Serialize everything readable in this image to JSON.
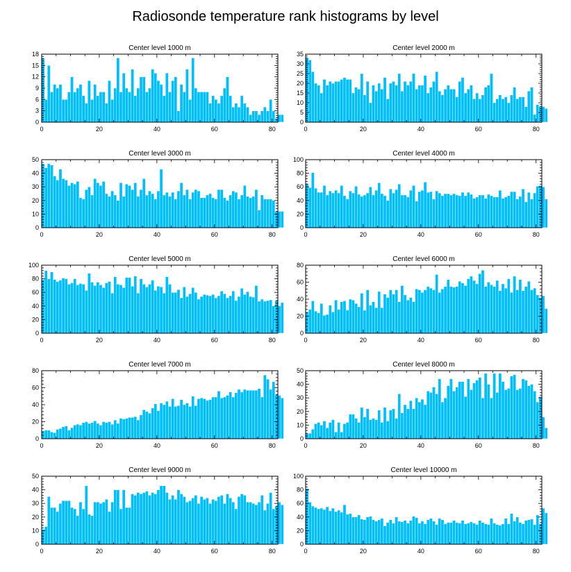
{
  "figure": {
    "title": "Radiosonde temperature rank histograms by level",
    "bar_color": "#00bfff"
  },
  "chart_data": [
    {
      "type": "bar",
      "title": "Center level 1000 m",
      "xlim": [
        0,
        82
      ],
      "ylim": [
        0,
        18
      ],
      "x_ticks": [
        0,
        20,
        40,
        60,
        80
      ],
      "y_ticks": [
        0,
        3,
        6,
        9,
        12,
        15,
        18
      ],
      "y_axis_side": "left",
      "values": [
        17,
        6,
        15,
        8,
        10,
        9,
        10,
        6,
        6,
        8,
        12,
        8,
        9,
        10,
        7,
        5,
        11,
        6,
        10,
        7,
        8,
        8,
        5,
        11,
        6,
        9,
        17,
        8,
        13,
        9,
        8,
        14,
        7,
        9,
        12,
        12,
        8,
        9,
        14,
        13,
        11,
        10,
        7,
        13,
        8,
        11,
        12,
        3,
        10,
        8,
        14,
        6,
        17,
        9,
        8,
        8,
        8,
        8,
        5,
        7,
        6,
        5,
        7,
        9,
        12,
        7,
        4,
        5,
        4,
        7,
        5,
        4,
        2,
        3,
        3,
        2,
        3,
        4,
        3,
        6,
        3,
        1,
        2,
        2
      ]
    },
    {
      "type": "bar",
      "title": "Center level 2000 m",
      "xlim": [
        0,
        82
      ],
      "ylim": [
        0,
        35
      ],
      "x_ticks": [
        0,
        20,
        40,
        60,
        80
      ],
      "y_ticks": [
        0,
        5,
        10,
        15,
        20,
        25,
        30,
        35
      ],
      "y_axis_side": "right",
      "values": [
        33,
        32,
        26,
        20,
        19,
        15,
        22,
        19,
        21,
        20,
        21,
        21,
        22,
        23,
        22,
        22,
        15,
        18,
        17,
        25,
        14,
        21,
        10,
        19,
        16,
        20,
        17,
        23,
        12,
        20,
        21,
        19,
        25,
        16,
        21,
        19,
        21,
        25,
        17,
        19,
        19,
        24,
        15,
        18,
        21,
        26,
        16,
        14,
        17,
        19,
        17,
        17,
        13,
        21,
        23,
        15,
        17,
        19,
        12,
        15,
        12,
        14,
        18,
        19,
        25,
        10,
        12,
        14,
        12,
        13,
        10,
        14,
        18,
        12,
        13,
        13,
        8,
        16,
        18,
        4,
        9,
        8,
        8,
        7
      ]
    },
    {
      "type": "bar",
      "title": "Center level 3000 m",
      "xlim": [
        0,
        82
      ],
      "ylim": [
        0,
        50
      ],
      "x_ticks": [
        0,
        20,
        40,
        60,
        80
      ],
      "y_ticks": [
        0,
        10,
        20,
        30,
        40,
        50
      ],
      "y_axis_side": "left",
      "values": [
        47,
        44,
        47,
        46,
        38,
        35,
        43,
        36,
        35,
        31,
        33,
        32,
        34,
        22,
        21,
        28,
        30,
        24,
        36,
        33,
        31,
        34,
        25,
        23,
        27,
        24,
        20,
        33,
        23,
        32,
        31,
        28,
        33,
        23,
        28,
        36,
        24,
        27,
        25,
        21,
        27,
        43,
        24,
        26,
        23,
        26,
        21,
        27,
        33,
        24,
        28,
        21,
        26,
        28,
        27,
        22,
        22,
        24,
        25,
        22,
        21,
        28,
        28,
        22,
        20,
        24,
        27,
        26,
        21,
        24,
        31,
        23,
        22,
        23,
        28,
        13,
        24,
        21,
        21,
        21,
        20,
        12,
        12,
        12
      ]
    },
    {
      "type": "bar",
      "title": "Center level 4000 m",
      "xlim": [
        0,
        82
      ],
      "ylim": [
        0,
        100
      ],
      "x_ticks": [
        0,
        20,
        40,
        60,
        80
      ],
      "y_ticks": [
        0,
        20,
        40,
        60,
        80,
        100
      ],
      "y_axis_side": "right",
      "values": [
        65,
        59,
        81,
        58,
        52,
        52,
        62,
        48,
        54,
        51,
        55,
        51,
        62,
        47,
        42,
        54,
        51,
        61,
        49,
        46,
        48,
        51,
        60,
        48,
        55,
        66,
        50,
        47,
        40,
        57,
        51,
        56,
        64,
        48,
        48,
        45,
        55,
        62,
        39,
        53,
        55,
        67,
        52,
        53,
        42,
        54,
        51,
        47,
        50,
        50,
        48,
        50,
        48,
        47,
        52,
        47,
        52,
        49,
        43,
        45,
        48,
        48,
        43,
        49,
        47,
        45,
        45,
        55,
        43,
        45,
        47,
        53,
        53,
        42,
        46,
        57,
        38,
        52,
        42,
        51,
        61,
        62,
        60,
        42
      ]
    },
    {
      "type": "bar",
      "title": "Center level 5000 m",
      "xlim": [
        0,
        82
      ],
      "ylim": [
        0,
        100
      ],
      "x_ticks": [
        0,
        20,
        40,
        60,
        80
      ],
      "y_ticks": [
        0,
        20,
        40,
        60,
        80,
        100
      ],
      "y_axis_side": "left",
      "values": [
        79,
        92,
        80,
        90,
        79,
        76,
        78,
        81,
        80,
        72,
        74,
        80,
        71,
        73,
        72,
        63,
        88,
        75,
        70,
        75,
        71,
        67,
        74,
        76,
        59,
        83,
        72,
        71,
        67,
        82,
        82,
        69,
        84,
        59,
        80,
        72,
        68,
        72,
        78,
        63,
        69,
        68,
        59,
        83,
        72,
        60,
        60,
        64,
        52,
        68,
        54,
        58,
        67,
        60,
        50,
        54,
        57,
        56,
        55,
        57,
        52,
        55,
        62,
        58,
        52,
        55,
        62,
        48,
        54,
        66,
        57,
        61,
        54,
        53,
        70,
        47,
        50,
        47,
        48,
        49,
        40,
        48,
        40,
        45
      ]
    },
    {
      "type": "bar",
      "title": "Center level 6000 m",
      "xlim": [
        0,
        82
      ],
      "ylim": [
        0,
        80
      ],
      "x_ticks": [
        0,
        20,
        40,
        60,
        80
      ],
      "y_ticks": [
        0,
        20,
        40,
        60,
        80
      ],
      "y_axis_side": "right",
      "values": [
        25,
        28,
        38,
        26,
        24,
        35,
        21,
        22,
        33,
        25,
        39,
        28,
        37,
        38,
        27,
        40,
        39,
        35,
        31,
        47,
        27,
        51,
        33,
        37,
        30,
        49,
        30,
        46,
        42,
        51,
        46,
        51,
        37,
        56,
        45,
        39,
        42,
        37,
        52,
        51,
        48,
        51,
        55,
        53,
        51,
        69,
        48,
        52,
        55,
        63,
        55,
        54,
        55,
        61,
        59,
        56,
        64,
        67,
        62,
        58,
        70,
        74,
        55,
        60,
        57,
        55,
        62,
        50,
        58,
        53,
        64,
        48,
        67,
        51,
        63,
        50,
        55,
        61,
        51,
        53,
        45,
        42,
        44,
        29
      ]
    },
    {
      "type": "bar",
      "title": "Center level 7000 m",
      "xlim": [
        0,
        82
      ],
      "ylim": [
        0,
        80
      ],
      "x_ticks": [
        0,
        20,
        40,
        60,
        80
      ],
      "y_ticks": [
        0,
        20,
        40,
        60,
        80
      ],
      "y_axis_side": "left",
      "values": [
        9,
        10,
        10,
        8,
        7,
        11,
        12,
        14,
        15,
        10,
        13,
        16,
        17,
        16,
        19,
        20,
        18,
        19,
        21,
        18,
        16,
        20,
        19,
        20,
        17,
        22,
        18,
        24,
        23,
        24,
        25,
        25,
        26,
        22,
        28,
        34,
        32,
        30,
        36,
        41,
        33,
        42,
        40,
        44,
        38,
        47,
        38,
        39,
        46,
        40,
        42,
        38,
        50,
        39,
        47,
        48,
        47,
        45,
        46,
        49,
        49,
        56,
        48,
        49,
        51,
        55,
        49,
        54,
        58,
        55,
        58,
        57,
        57,
        57,
        57,
        59,
        49,
        75,
        70,
        58,
        67,
        52,
        51,
        48
      ]
    },
    {
      "type": "bar",
      "title": "Center level 8000 m",
      "xlim": [
        0,
        82
      ],
      "ylim": [
        0,
        50
      ],
      "x_ticks": [
        0,
        20,
        40,
        60,
        80
      ],
      "y_ticks": [
        0,
        10,
        20,
        30,
        40,
        50
      ],
      "y_axis_side": "right",
      "values": [
        4,
        4,
        7,
        11,
        12,
        10,
        13,
        8,
        12,
        14,
        5,
        12,
        5,
        11,
        12,
        18,
        18,
        15,
        12,
        23,
        16,
        22,
        14,
        15,
        14,
        21,
        12,
        23,
        13,
        21,
        22,
        15,
        33,
        19,
        25,
        22,
        28,
        22,
        30,
        27,
        29,
        25,
        35,
        34,
        38,
        33,
        44,
        27,
        30,
        39,
        44,
        35,
        38,
        42,
        42,
        31,
        44,
        36,
        41,
        43,
        45,
        30,
        48,
        40,
        30,
        48,
        34,
        48,
        42,
        36,
        37,
        46,
        47,
        36,
        37,
        44,
        43,
        39,
        40,
        35,
        27,
        31,
        16,
        8
      ]
    },
    {
      "type": "bar",
      "title": "Center level 9000 m",
      "xlim": [
        0,
        82
      ],
      "ylim": [
        0,
        50
      ],
      "x_ticks": [
        0,
        20,
        40,
        60,
        80
      ],
      "y_ticks": [
        0,
        10,
        20,
        30,
        40,
        50
      ],
      "y_axis_side": "left",
      "values": [
        11,
        13,
        35,
        27,
        27,
        24,
        30,
        32,
        32,
        32,
        27,
        26,
        21,
        31,
        26,
        43,
        22,
        21,
        31,
        31,
        30,
        31,
        33,
        24,
        31,
        40,
        40,
        26,
        40,
        27,
        27,
        37,
        36,
        38,
        37,
        38,
        39,
        36,
        38,
        37,
        40,
        43,
        43,
        38,
        33,
        36,
        33,
        40,
        37,
        35,
        31,
        32,
        34,
        36,
        30,
        35,
        33,
        34,
        30,
        33,
        32,
        35,
        36,
        30,
        37,
        34,
        31,
        26,
        35,
        37,
        36,
        31,
        31,
        30,
        29,
        31,
        36,
        25,
        30,
        38,
        26,
        28,
        31,
        29
      ]
    },
    {
      "type": "bar",
      "title": "Center level 10000 m",
      "xlim": [
        0,
        82
      ],
      "ylim": [
        0,
        100
      ],
      "x_ticks": [
        0,
        20,
        40,
        60,
        80
      ],
      "y_ticks": [
        0,
        20,
        40,
        60,
        80,
        100
      ],
      "y_axis_side": "right",
      "values": [
        82,
        62,
        56,
        54,
        52,
        53,
        51,
        55,
        49,
        53,
        48,
        50,
        47,
        58,
        44,
        45,
        40,
        40,
        43,
        37,
        36,
        40,
        41,
        36,
        34,
        36,
        38,
        27,
        32,
        36,
        31,
        40,
        34,
        33,
        35,
        31,
        35,
        41,
        39,
        31,
        34,
        30,
        36,
        38,
        34,
        29,
        38,
        36,
        30,
        32,
        32,
        35,
        32,
        31,
        35,
        30,
        31,
        33,
        31,
        29,
        35,
        32,
        30,
        29,
        38,
        31,
        29,
        28,
        30,
        38,
        30,
        45,
        34,
        40,
        32,
        30,
        35,
        36,
        37,
        29,
        43,
        30,
        53,
        46
      ]
    }
  ]
}
